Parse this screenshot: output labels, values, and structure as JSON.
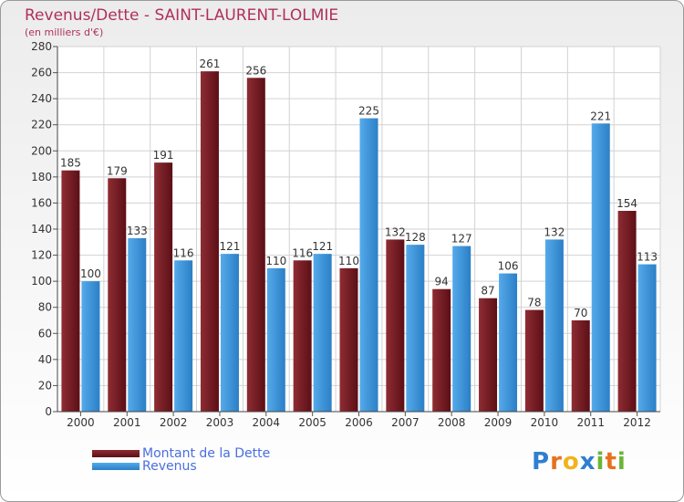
{
  "chart_data": {
    "type": "bar",
    "title": "Revenus/Dette - SAINT-LAURENT-LOLMIE",
    "subtitle": "(en milliers d'€)",
    "xlabel": "",
    "ylabel": "",
    "ylim": [
      0,
      280
    ],
    "yticks": [
      0,
      20,
      40,
      60,
      80,
      100,
      120,
      140,
      160,
      180,
      200,
      220,
      240,
      260,
      280
    ],
    "categories": [
      "2000",
      "2001",
      "2002",
      "2003",
      "2004",
      "2005",
      "2006",
      "2007",
      "2008",
      "2009",
      "2010",
      "2011",
      "2012"
    ],
    "series": [
      {
        "name": "Montant de la Dette",
        "color": "#7a1e24",
        "values": [
          185,
          179,
          191,
          261,
          256,
          116,
          110,
          132,
          94,
          87,
          78,
          70,
          154
        ]
      },
      {
        "name": "Revenus",
        "color": "#3d95dc",
        "values": [
          100,
          133,
          116,
          121,
          110,
          121,
          225,
          128,
          127,
          106,
          132,
          221,
          113
        ]
      }
    ],
    "legend_position": "bottom-left"
  },
  "logo": {
    "letters": [
      "P",
      "r",
      "o",
      "x",
      "i",
      "t",
      "i"
    ],
    "colors": [
      "#2f7fd0",
      "#e8701e",
      "#f2b31c",
      "#2f7fd0",
      "#6bb536",
      "#e8701e",
      "#6bb536"
    ]
  }
}
